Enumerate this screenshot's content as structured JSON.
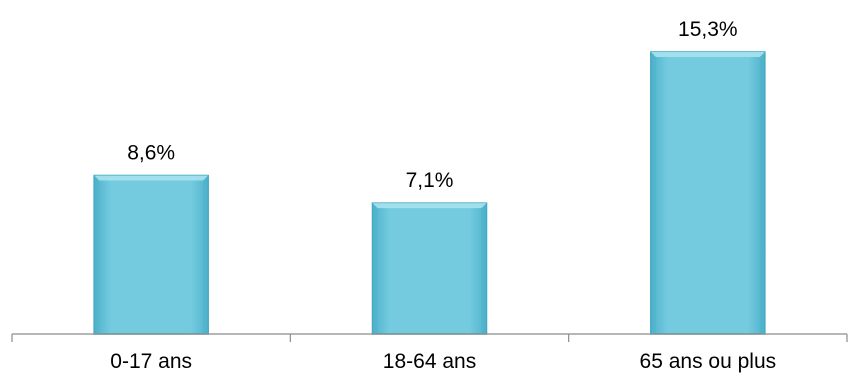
{
  "chart_data": {
    "type": "bar",
    "categories": [
      "0-17 ans",
      "18-64 ans",
      "65 ans ou plus"
    ],
    "values": [
      8.6,
      7.1,
      15.3
    ],
    "value_labels": [
      "8,6%",
      "7,1%",
      "15,3%"
    ],
    "unit": "%",
    "title": "",
    "xlabel": "",
    "ylabel": "",
    "ylim": [
      0,
      15.3
    ],
    "grid": false,
    "legend": "none",
    "colors": {
      "bar_face": "#74cbe0",
      "bar_edge": "#3ea5be",
      "bar_light": "#a9e2ef",
      "bar_dark": "#4fb2cb",
      "axis": "#8c8c8c"
    }
  }
}
